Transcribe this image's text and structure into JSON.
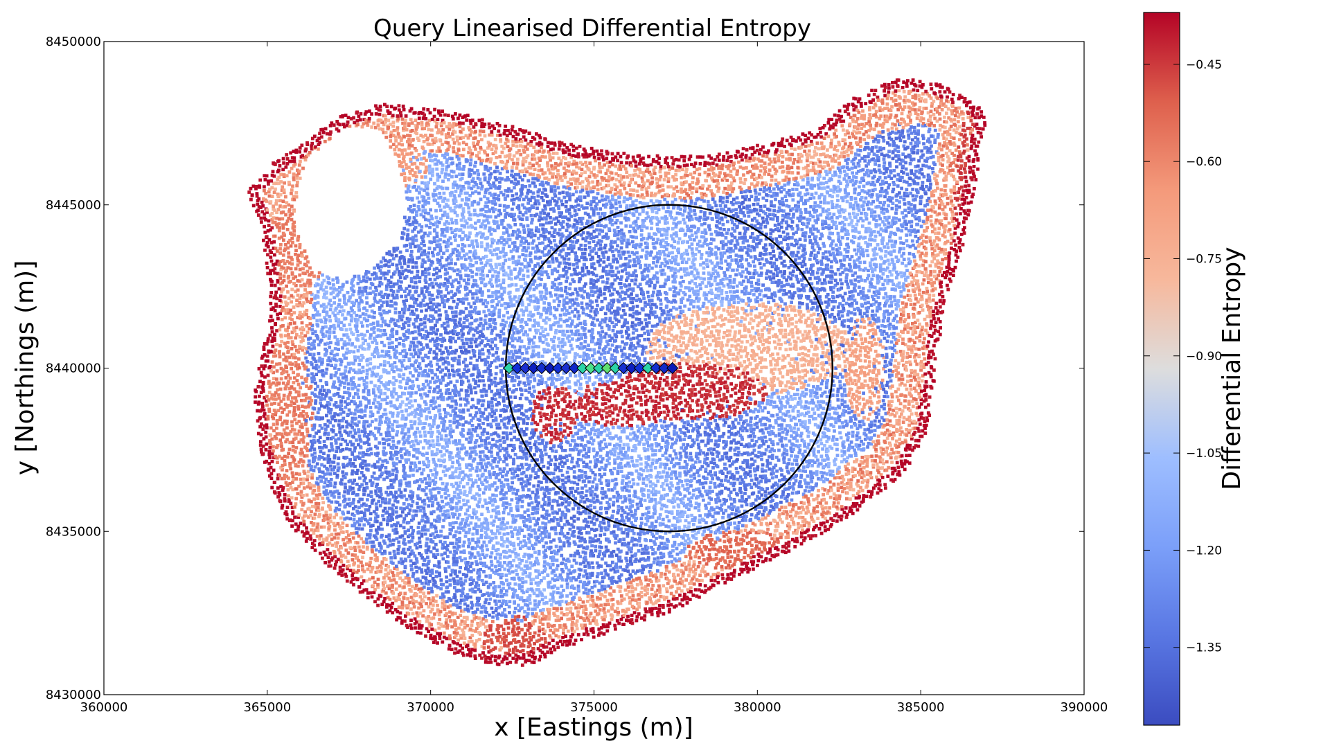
{
  "chart_data": {
    "type": "scatter",
    "title": "Query Linearised Differential Entropy",
    "xlabel": "x [Eastings (m)]",
    "ylabel": "y [Northings (m)]",
    "xlim": [
      360000,
      390000
    ],
    "ylim": [
      8430000,
      8450000
    ],
    "xticks": [
      "360000",
      "365000",
      "370000",
      "375000",
      "380000",
      "385000",
      "390000"
    ],
    "yticks": [
      "8430000",
      "8435000",
      "8440000",
      "8445000",
      "8450000"
    ],
    "grid": false,
    "colorbar": {
      "label": "Differential Entropy",
      "colormap": "coolwarm",
      "range": [
        -1.47,
        -0.37
      ],
      "ticks": [
        "−1.35",
        "−1.20",
        "−1.05",
        "−0.90",
        "−0.75",
        "−0.60",
        "−0.45"
      ],
      "tick_values": [
        -1.35,
        -1.2,
        -1.05,
        -0.9,
        -0.75,
        -0.6,
        -0.45
      ],
      "low_color": "#3b4cc0",
      "mid_color": "#dddddd",
      "high_color": "#b40426"
    },
    "region_boundary": [
      [
        364400,
        8445400
      ],
      [
        365200,
        8446300
      ],
      [
        367200,
        8447700
      ],
      [
        368500,
        8448100
      ],
      [
        370500,
        8447900
      ],
      [
        372500,
        8447400
      ],
      [
        374500,
        8446800
      ],
      [
        376500,
        8446500
      ],
      [
        378500,
        8446500
      ],
      [
        380300,
        8446900
      ],
      [
        381800,
        8447300
      ],
      [
        383000,
        8448300
      ],
      [
        384300,
        8448900
      ],
      [
        385600,
        8448700
      ],
      [
        386800,
        8448100
      ],
      [
        387000,
        8447600
      ],
      [
        386700,
        8445800
      ],
      [
        386300,
        8443800
      ],
      [
        385700,
        8441800
      ],
      [
        385200,
        8438000
      ],
      [
        384500,
        8436800
      ],
      [
        382800,
        8435400
      ],
      [
        381000,
        8434400
      ],
      [
        379000,
        8433400
      ],
      [
        377500,
        8432600
      ],
      [
        375500,
        8431900
      ],
      [
        374000,
        8431400
      ],
      [
        373000,
        8430900
      ],
      [
        372000,
        8430900
      ],
      [
        370600,
        8431300
      ],
      [
        369200,
        8432100
      ],
      [
        368000,
        8433000
      ],
      [
        366800,
        8434000
      ],
      [
        365700,
        8435200
      ],
      [
        365100,
        8436400
      ],
      [
        364700,
        8437700
      ],
      [
        364600,
        8439300
      ],
      [
        364900,
        8440700
      ],
      [
        365100,
        8441700
      ],
      [
        365000,
        8443000
      ],
      [
        364800,
        8444300
      ]
    ],
    "hole_boundary": [
      [
        366200,
        8446400
      ],
      [
        367400,
        8447400
      ],
      [
        368400,
        8447300
      ],
      [
        369000,
        8446400
      ],
      [
        369300,
        8445000
      ],
      [
        369000,
        8443800
      ],
      [
        368200,
        8443100
      ],
      [
        367400,
        8442700
      ],
      [
        366400,
        8443000
      ],
      [
        365900,
        8444200
      ],
      [
        365900,
        8445500
      ]
    ],
    "circle": {
      "center": [
        377300,
        8440000
      ],
      "radius": 5000,
      "color": "#000000"
    },
    "query_points": {
      "marker": "diamond",
      "y": 8440000,
      "x": [
        372400,
        372650,
        372900,
        373150,
        373400,
        373650,
        373900,
        374150,
        374400,
        374650,
        374900,
        375150,
        375400,
        375650,
        375900,
        376150,
        376400,
        376650,
        376900,
        377150,
        377400
      ],
      "colors": [
        "#2bd4a8",
        "#1230d8",
        "#1a2fd0",
        "#0d1fc0",
        "#1530d0",
        "#0a1ab8",
        "#1230d8",
        "#1a2fd0",
        "#1028c8",
        "#2bd4a8",
        "#4de08a",
        "#2bd4a8",
        "#60e070",
        "#2bd4a8",
        "#1530d0",
        "#0d1fc0",
        "#1230d8",
        "#2bd4a8",
        "#1530d0",
        "#1028c8",
        "#0a1ab8"
      ]
    },
    "high_entropy_regions": [
      {
        "center": [
          379800,
          8440600
        ],
        "radii": [
          3200,
          1400
        ],
        "value": -0.72
      },
      {
        "center": [
          377900,
          8439300
        ],
        "radii": [
          2400,
          900
        ],
        "value": -0.4
      },
      {
        "center": [
          375900,
          8438900
        ],
        "radii": [
          1800,
          700
        ],
        "value": -0.4
      },
      {
        "center": [
          373800,
          8438600
        ],
        "radii": [
          700,
          900
        ],
        "value": -0.4
      },
      {
        "center": [
          383600,
          8447800
        ],
        "radii": [
          1400,
          600
        ],
        "value": -0.65
      },
      {
        "center": [
          386600,
          8444200
        ],
        "radii": [
          600,
          3800
        ],
        "value": -0.42
      },
      {
        "center": [
          365600,
          8438600
        ],
        "radii": [
          800,
          2200
        ],
        "value": -0.55
      },
      {
        "center": [
          366300,
          8433800
        ],
        "radii": [
          1200,
          900
        ],
        "value": -0.62
      },
      {
        "center": [
          372600,
          8431700
        ],
        "radii": [
          1000,
          700
        ],
        "value": -0.45
      },
      {
        "center": [
          379500,
          8434400
        ],
        "radii": [
          1700,
          600
        ],
        "value": -0.5
      },
      {
        "center": [
          366000,
          8443800
        ],
        "radii": [
          900,
          1300
        ],
        "value": -0.55
      },
      {
        "center": [
          368800,
          8446200
        ],
        "radii": [
          1100,
          700
        ],
        "value": -0.62
      },
      {
        "center": [
          379600,
          8446200
        ],
        "radii": [
          1200,
          400
        ],
        "value": -0.6
      },
      {
        "center": [
          383300,
          8440000
        ],
        "radii": [
          600,
          1600
        ],
        "value": -0.65
      }
    ]
  }
}
